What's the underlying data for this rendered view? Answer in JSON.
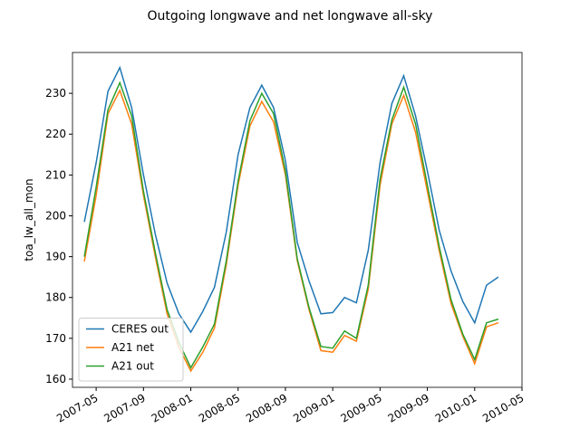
{
  "chart_data": {
    "type": "line",
    "title": "Outgoing longwave and net longwave all-sky",
    "y_label": "toa_lw_all_mon",
    "x": [
      "2007-04",
      "2007-05",
      "2007-06",
      "2007-07",
      "2007-08",
      "2007-09",
      "2007-10",
      "2007-11",
      "2007-12",
      "2008-01",
      "2008-02",
      "2008-03",
      "2008-04",
      "2008-05",
      "2008-06",
      "2008-07",
      "2008-08",
      "2008-09",
      "2008-10",
      "2008-11",
      "2008-12",
      "2009-01",
      "2009-02",
      "2009-03",
      "2009-04",
      "2009-05",
      "2009-06",
      "2009-07",
      "2009-08",
      "2009-09",
      "2009-10",
      "2009-11",
      "2009-12",
      "2010-01",
      "2010-02",
      "2010-03"
    ],
    "series": [
      {
        "name": "CERES out",
        "color": "#1f77b4",
        "values": [
          198.5,
          213,
          230.5,
          236.3,
          226.5,
          210,
          195.5,
          183.5,
          176,
          171.5,
          176.5,
          182.5,
          196,
          215,
          226.5,
          232,
          226.5,
          213.5,
          193.5,
          184,
          176,
          176.3,
          180,
          178.7,
          191.5,
          213,
          227.5,
          234.3,
          224.5,
          211,
          196.5,
          186.5,
          179,
          173.8,
          183,
          185
        ]
      },
      {
        "name": "A21 net",
        "color": "#ff7f0e",
        "values": [
          188.8,
          205,
          225,
          230.7,
          222.5,
          205,
          190,
          176,
          167.8,
          162,
          166.5,
          172.5,
          188,
          207.5,
          222,
          228,
          223,
          210,
          189,
          177,
          167,
          166.6,
          170.7,
          169.3,
          182,
          207.5,
          222.5,
          229.5,
          220.5,
          206,
          191.5,
          178.5,
          170.5,
          163.8,
          172.8,
          173.8
        ]
      },
      {
        "name": "A21 out",
        "color": "#2ca02c",
        "values": [
          190,
          207,
          226,
          232.6,
          224.5,
          206,
          191,
          177,
          169,
          162.8,
          167.8,
          173.5,
          189,
          208.5,
          223.3,
          230,
          225,
          211,
          189.5,
          177.5,
          168,
          167.6,
          171.8,
          170,
          183,
          209,
          223.5,
          231.5,
          222.5,
          207.5,
          192.5,
          179.5,
          171,
          164.8,
          173.8,
          174.7
        ]
      }
    ],
    "xlim": [
      "2007-03",
      "2010-05"
    ],
    "xticks": [
      "2007-05",
      "2007-09",
      "2008-01",
      "2008-05",
      "2008-09",
      "2009-01",
      "2009-05",
      "2009-09",
      "2010-01",
      "2010-05"
    ],
    "ylim": [
      158,
      240
    ],
    "yticks": [
      160,
      170,
      180,
      190,
      200,
      210,
      220,
      230
    ],
    "legend": "lower left"
  }
}
